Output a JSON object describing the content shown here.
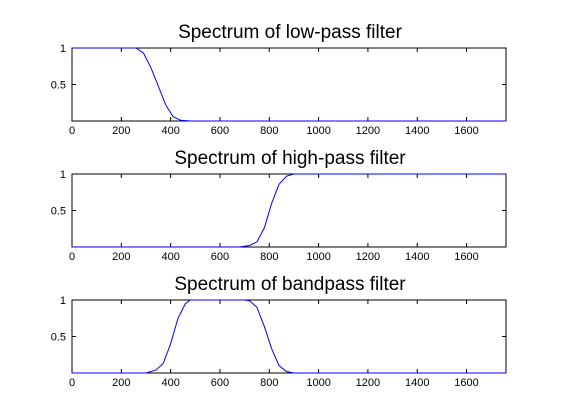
{
  "figure": {
    "background": "#ffffff",
    "line_color": "#0000ff",
    "axes_color": "#000000"
  },
  "chart_data": [
    {
      "type": "line",
      "title": "Spectrum of low-pass filter",
      "xlabel": "",
      "ylabel": "",
      "xlim": [
        0,
        1760
      ],
      "ylim": [
        0,
        1
      ],
      "xticks": [
        0,
        200,
        400,
        600,
        800,
        1000,
        1200,
        1400,
        1600
      ],
      "yticks": [
        0.5,
        1
      ],
      "grid": false,
      "series": [
        {
          "x": [
            0,
            260,
            290,
            320,
            350,
            380,
            410,
            440,
            480,
            600,
            800,
            1000,
            1200,
            1400,
            1600,
            1760
          ],
          "y": [
            1,
            1,
            0.93,
            0.73,
            0.48,
            0.22,
            0.06,
            0.01,
            0,
            0,
            0,
            0,
            0,
            0,
            0,
            0
          ]
        }
      ]
    },
    {
      "type": "line",
      "title": "Spectrum of high-pass filter",
      "xlabel": "",
      "ylabel": "",
      "xlim": [
        0,
        1760
      ],
      "ylim": [
        0,
        1
      ],
      "xticks": [
        0,
        200,
        400,
        600,
        800,
        1000,
        1200,
        1400,
        1600
      ],
      "yticks": [
        0.5,
        1
      ],
      "grid": false,
      "series": [
        {
          "x": [
            0,
            200,
            400,
            600,
            680,
            720,
            750,
            780,
            810,
            840,
            870,
            900,
            930,
            1000,
            1200,
            1400,
            1600,
            1760
          ],
          "y": [
            0,
            0,
            0,
            0,
            0,
            0.02,
            0.07,
            0.26,
            0.6,
            0.86,
            0.97,
            1,
            1,
            1,
            1,
            1,
            1,
            1
          ]
        }
      ]
    },
    {
      "type": "line",
      "title": "Spectrum of bandpass filter",
      "xlabel": "",
      "ylabel": "",
      "xlim": [
        0,
        1760
      ],
      "ylim": [
        0,
        1
      ],
      "xticks": [
        0,
        200,
        400,
        600,
        800,
        1000,
        1200,
        1400,
        1600
      ],
      "yticks": [
        0.5,
        1
      ],
      "grid": false,
      "series": [
        {
          "x": [
            0,
            200,
            300,
            340,
            370,
            400,
            430,
            460,
            480,
            500,
            600,
            700,
            720,
            750,
            780,
            810,
            840,
            870,
            900,
            1000,
            1200,
            1400,
            1600,
            1760
          ],
          "y": [
            0,
            0,
            0,
            0.04,
            0.13,
            0.4,
            0.75,
            0.95,
            1,
            1,
            1,
            1,
            0.99,
            0.9,
            0.64,
            0.33,
            0.1,
            0.02,
            0,
            0,
            0,
            0,
            0,
            0
          ]
        }
      ]
    }
  ]
}
